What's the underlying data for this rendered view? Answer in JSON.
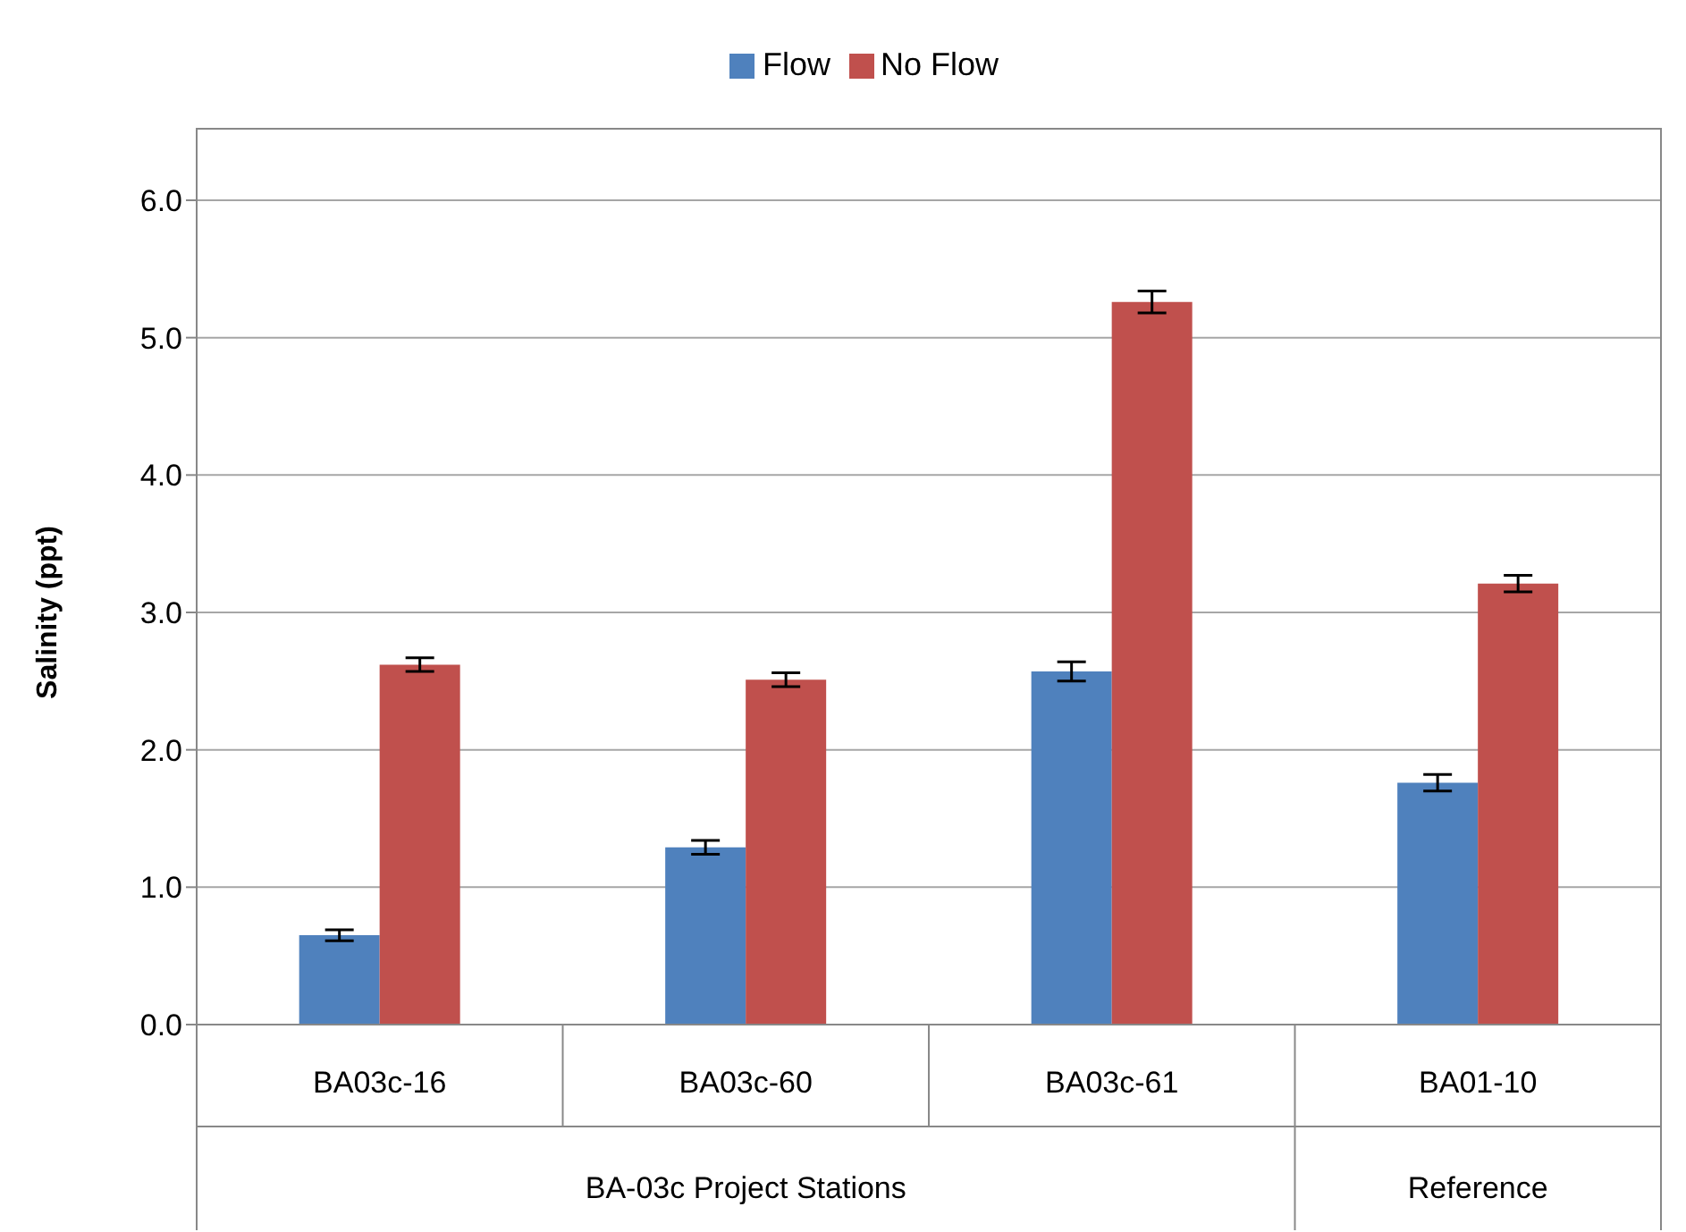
{
  "chart_data": {
    "type": "bar",
    "ylabel": "Salinity (ppt)",
    "categories": [
      "BA03c-16",
      "BA03c-60",
      "BA03c-61",
      "BA01-10"
    ],
    "series": [
      {
        "name": "Flow",
        "color": "#4f81bd",
        "values": [
          0.65,
          1.29,
          2.57,
          1.76
        ],
        "errors": [
          0.04,
          0.05,
          0.07,
          0.06
        ]
      },
      {
        "name": "No Flow",
        "color": "#c0504d",
        "values": [
          2.62,
          2.51,
          5.26,
          3.21
        ],
        "errors": [
          0.05,
          0.05,
          0.08,
          0.06
        ]
      }
    ],
    "ylim": [
      0,
      6
    ],
    "yticks": [
      {
        "value": 0,
        "label": "0.0"
      },
      {
        "value": 1,
        "label": "1.0"
      },
      {
        "value": 2,
        "label": "2.0"
      },
      {
        "value": 3,
        "label": "3.0"
      },
      {
        "value": 4,
        "label": "4.0"
      },
      {
        "value": 5,
        "label": "5.0"
      },
      {
        "value": 6,
        "label": "6.0"
      }
    ],
    "annotations": [
      "BA-03c Project Stations",
      "Reference"
    ],
    "grid": "y",
    "legend": "top"
  }
}
